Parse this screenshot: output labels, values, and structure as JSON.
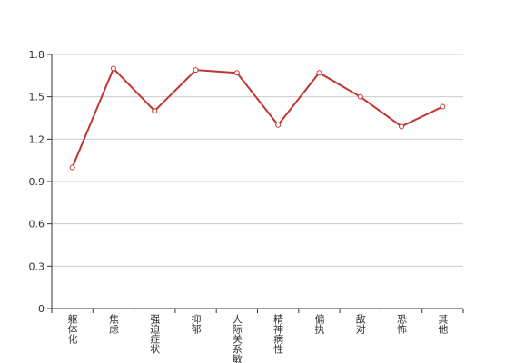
{
  "chart_data": {
    "type": "line",
    "categories": [
      "躯体化",
      "焦虑",
      "强迫症状",
      "抑郁",
      "人际关系敏感",
      "精神病性",
      "偏执",
      "敌对",
      "恐怖",
      "其他"
    ],
    "values": [
      1.0,
      1.7,
      1.4,
      1.69,
      1.67,
      1.3,
      1.67,
      1.5,
      1.29,
      1.43
    ],
    "color": "#c23531",
    "ylim": [
      0,
      1.8
    ],
    "yticks": [
      0,
      0.3,
      0.6,
      0.9,
      1.2,
      1.5,
      1.8
    ],
    "grid": true
  }
}
